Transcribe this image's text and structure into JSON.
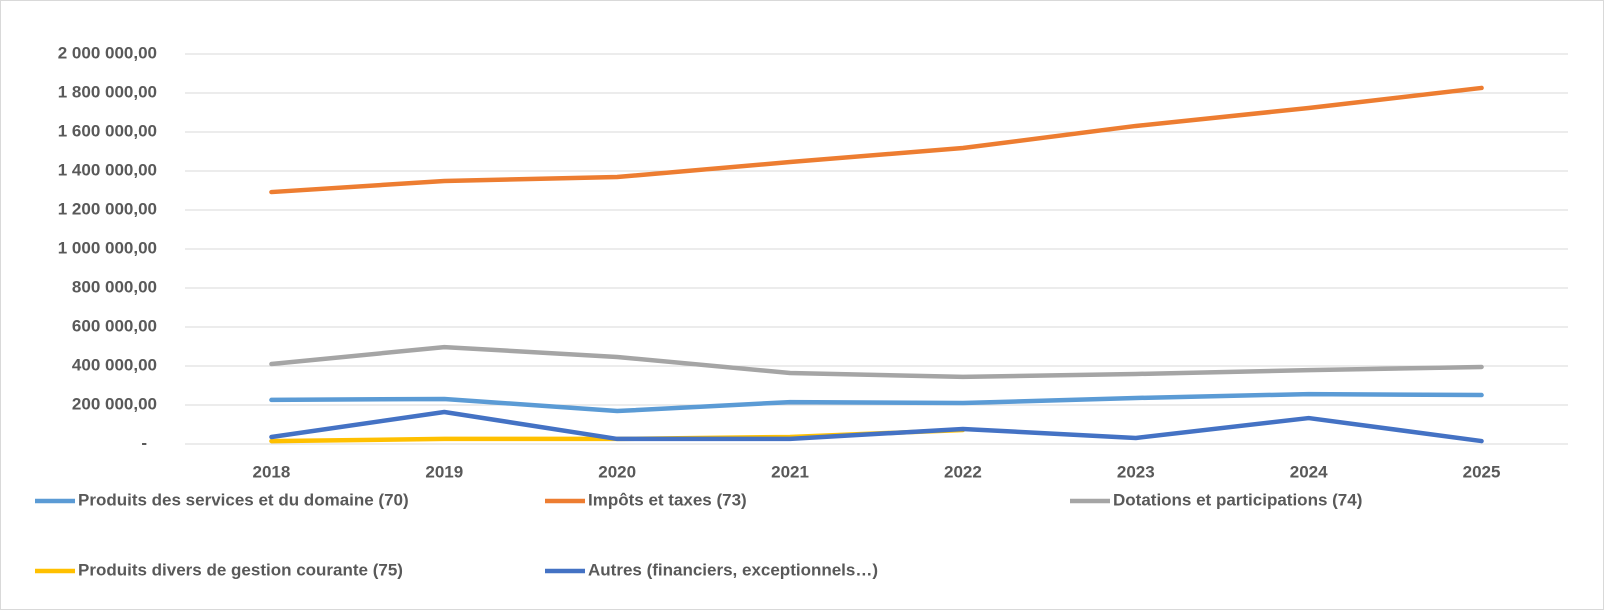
{
  "chart_data": {
    "type": "line",
    "categories": [
      "2018",
      "2019",
      "2020",
      "2021",
      "2022",
      "2023",
      "2024",
      "2025"
    ],
    "series": [
      {
        "name": "Produits des services et du domaine (70)",
        "color": "#5b9bd5",
        "values": [
          226000,
          231000,
          169000,
          215000,
          210000,
          236000,
          256000,
          251000
        ]
      },
      {
        "name": "Impôts et taxes (73)",
        "color": "#ed7d31",
        "values": [
          1292000,
          1349000,
          1369000,
          1446000,
          1518000,
          1631000,
          1723000,
          1826000
        ]
      },
      {
        "name": "Dotations et participations (74)",
        "color": "#a5a5a5",
        "values": [
          410000,
          497000,
          446000,
          364000,
          344000,
          359000,
          379000,
          395000
        ]
      },
      {
        "name": "Produits divers de gestion courante (75)",
        "color": "#ffc000",
        "values": [
          15000,
          26000,
          26000,
          36000,
          72000,
          null,
          null,
          null
        ]
      },
      {
        "name": "Autres (financiers, exceptionnels…)",
        "color": "#4472c4",
        "values": [
          36000,
          164000,
          26000,
          26000,
          77000,
          31000,
          133000,
          15000
        ]
      }
    ],
    "ylim": [
      0,
      2000000
    ],
    "yticks": [
      {
        "value": 0,
        "label": "-"
      },
      {
        "value": 200000,
        "label": "200 000,00"
      },
      {
        "value": 400000,
        "label": "400 000,00"
      },
      {
        "value": 600000,
        "label": "600 000,00"
      },
      {
        "value": 800000,
        "label": "800 000,00"
      },
      {
        "value": 1000000,
        "label": "1 000 000,00"
      },
      {
        "value": 1200000,
        "label": "1 200 000,00"
      },
      {
        "value": 1400000,
        "label": "1 400 000,00"
      },
      {
        "value": 1600000,
        "label": "1 600 000,00"
      },
      {
        "value": 1800000,
        "label": "1 800 000,00"
      },
      {
        "value": 2000000,
        "label": "2 000 000,00"
      }
    ],
    "grid": true,
    "legend": "bottom"
  }
}
